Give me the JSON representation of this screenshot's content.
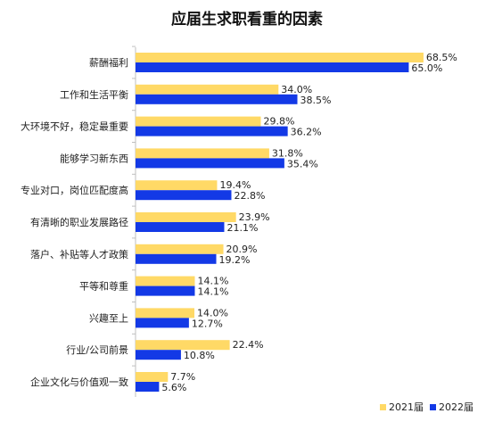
{
  "chart_data": {
    "type": "bar",
    "orientation": "horizontal",
    "title": "应届生求职看重的因素",
    "categories": [
      "薪酬福利",
      "工作和生活平衡",
      "大环境不好，稳定最重要",
      "能够学习新东西",
      "专业对口，岗位匹配度高",
      "有清晰的职业发展路径",
      "落户、补贴等人才政策",
      "平等和尊重",
      "兴趣至上",
      "行业/公司前景",
      "企业文化与价值观一致"
    ],
    "series": [
      {
        "name": "2021届",
        "color": "#FFD966",
        "values": [
          68.5,
          34.0,
          29.8,
          31.8,
          19.4,
          23.9,
          20.9,
          14.1,
          14.0,
          22.4,
          7.7
        ],
        "labels": [
          "68.5%",
          "34.0%",
          "29.8%",
          "31.8%",
          "19.4%",
          "23.9%",
          "20.9%",
          "14.1%",
          "14.0%",
          "22.4%",
          "7.7%"
        ]
      },
      {
        "name": "2022届",
        "color": "#1339E6",
        "values": [
          65.0,
          38.5,
          36.2,
          35.4,
          22.8,
          21.1,
          19.2,
          14.1,
          12.7,
          10.8,
          5.6
        ],
        "labels": [
          "65.0%",
          "38.5%",
          "36.2%",
          "35.4%",
          "22.8%",
          "21.1%",
          "19.2%",
          "14.1%",
          "12.7%",
          "10.8%",
          "5.6%"
        ]
      }
    ],
    "value_unit": "%",
    "xlim": [
      0,
      70
    ],
    "grid": false,
    "legend_position": "bottom-right",
    "axis_line_color": "#BFBFBF"
  }
}
